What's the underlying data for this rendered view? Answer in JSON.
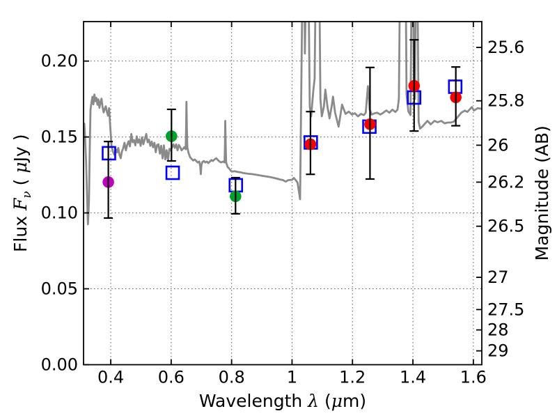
{
  "figure": {
    "background": "#ffffff"
  },
  "chart_data": {
    "type": "line",
    "title": "",
    "xlabel_text": "Wavelength λ (μm)",
    "ylabel_left_text": "Flux Fν ( μJy )",
    "ylabel_right_text": "Magnitude (AB)",
    "xlabel_parts": [
      {
        "t": "Wavelength  ",
        "style": "plain"
      },
      {
        "t": "λ",
        "style": "math"
      },
      {
        "t": " (",
        "style": "plain"
      },
      {
        "t": "μ",
        "style": "math"
      },
      {
        "t": "m)",
        "style": "plain"
      }
    ],
    "ylabel_left_parts": [
      {
        "t": "Flux  ",
        "style": "plain"
      },
      {
        "t": "F",
        "style": "math"
      },
      {
        "t": "ν",
        "style": "mathsub"
      },
      {
        "t": "  ( ",
        "style": "plain"
      },
      {
        "t": "μ",
        "style": "math"
      },
      {
        "t": "Jy )",
        "style": "plain"
      }
    ],
    "ylabel_right_parts": [
      {
        "t": "Magnitude (AB)",
        "style": "plain"
      }
    ],
    "xlim": [
      0.31,
      1.628
    ],
    "ylim_flux": [
      0.0,
      0.226
    ],
    "grid": {
      "on": true,
      "style": "dotted",
      "color": "#555555"
    },
    "x_ticks": [
      {
        "v": 0.4,
        "label": "0.4"
      },
      {
        "v": 0.6,
        "label": "0.6"
      },
      {
        "v": 0.8,
        "label": "0.8"
      },
      {
        "v": 1.0,
        "label": "1"
      },
      {
        "v": 1.2,
        "label": "1.2"
      },
      {
        "v": 1.4,
        "label": "1.4"
      },
      {
        "v": 1.6,
        "label": "1.6"
      }
    ],
    "y_ticks_left": [
      {
        "v": 0.0,
        "label": "0.00"
      },
      {
        "v": 0.05,
        "label": "0.05"
      },
      {
        "v": 0.1,
        "label": "0.10"
      },
      {
        "v": 0.15,
        "label": "0.15"
      },
      {
        "v": 0.2,
        "label": "0.20"
      }
    ],
    "y_ticks_right": [
      {
        "mag": 25.6,
        "label": "25.6"
      },
      {
        "mag": 25.8,
        "label": "25.8"
      },
      {
        "mag": 26.0,
        "label": "26"
      },
      {
        "mag": 26.2,
        "label": "26.2"
      },
      {
        "mag": 26.5,
        "label": "26.5"
      },
      {
        "mag": 27.0,
        "label": "27"
      },
      {
        "mag": 27.5,
        "label": "27.5"
      },
      {
        "mag": 28.0,
        "label": "28"
      },
      {
        "mag": 29.0,
        "label": "29"
      }
    ],
    "colors": {
      "spectrum": "#8a8a8a",
      "model_squares": "#0000ff",
      "error_bars": "#000000",
      "magenta_point": "#bf00bf",
      "green_point": "#00a32a",
      "red_point": "#f80000"
    },
    "spectrum": {
      "name": "grey observed spectrum",
      "points": [
        [
          0.3105,
          0.152
        ],
        [
          0.3125,
          0.1588
        ],
        [
          0.315,
          0.1495
        ],
        [
          0.3185,
          0.133
        ],
        [
          0.322,
          0.108
        ],
        [
          0.3245,
          0.0925
        ],
        [
          0.328,
          0.108
        ],
        [
          0.3305,
          0.142
        ],
        [
          0.333,
          0.168
        ],
        [
          0.336,
          0.1725
        ],
        [
          0.3395,
          0.1765
        ],
        [
          0.3425,
          0.1715
        ],
        [
          0.346,
          0.178
        ],
        [
          0.3495,
          0.1735
        ],
        [
          0.3525,
          0.1758
        ],
        [
          0.356,
          0.1712
        ],
        [
          0.359,
          0.1748
        ],
        [
          0.3625,
          0.1692
        ],
        [
          0.366,
          0.1728
        ],
        [
          0.3695,
          0.1752
        ],
        [
          0.373,
          0.1697
        ],
        [
          0.3765,
          0.1662
        ],
        [
          0.38,
          0.1685
        ],
        [
          0.3835,
          0.1702
        ],
        [
          0.3875,
          0.1665
        ],
        [
          0.391,
          0.164
        ],
        [
          0.3945,
          0.169
        ],
        [
          0.398,
          0.158
        ],
        [
          0.4025,
          0.1445
        ],
        [
          0.407,
          0.1405
        ],
        [
          0.412,
          0.1382
        ],
        [
          0.4165,
          0.142
        ],
        [
          0.4205,
          0.1398
        ],
        [
          0.425,
          0.1428
        ],
        [
          0.429,
          0.1382
        ],
        [
          0.433,
          0.136
        ],
        [
          0.437,
          0.1405
        ],
        [
          0.441,
          0.1425
        ],
        [
          0.4455,
          0.1462
        ],
        [
          0.45,
          0.1412
        ],
        [
          0.4545,
          0.1448
        ],
        [
          0.459,
          0.1472
        ],
        [
          0.4635,
          0.1438
        ],
        [
          0.468,
          0.152
        ],
        [
          0.4725,
          0.1465
        ],
        [
          0.477,
          0.148
        ],
        [
          0.4815,
          0.1445
        ],
        [
          0.486,
          0.1504
        ],
        [
          0.49,
          0.1462
        ],
        [
          0.4945,
          0.1485
        ],
        [
          0.499,
          0.1442
        ],
        [
          0.5035,
          0.1498
        ],
        [
          0.508,
          0.1452
        ],
        [
          0.513,
          0.1488
        ],
        [
          0.5175,
          0.152
        ],
        [
          0.522,
          0.1465
        ],
        [
          0.5265,
          0.1482
        ],
        [
          0.531,
          0.1442
        ],
        [
          0.5355,
          0.147
        ],
        [
          0.54,
          0.1432
        ],
        [
          0.5445,
          0.1462
        ],
        [
          0.549,
          0.1399
        ],
        [
          0.5535,
          0.1448
        ],
        [
          0.558,
          0.1452
        ],
        [
          0.5625,
          0.139
        ],
        [
          0.567,
          0.1442
        ],
        [
          0.5715,
          0.1359
        ],
        [
          0.576,
          0.1445
        ],
        [
          0.5805,
          0.1353
        ],
        [
          0.585,
          0.1413
        ],
        [
          0.5895,
          0.1344
        ],
        [
          0.594,
          0.1422
        ],
        [
          0.5985,
          0.1412
        ],
        [
          0.603,
          0.1432
        ],
        [
          0.6075,
          0.1452
        ],
        [
          0.612,
          0.1428
        ],
        [
          0.6165,
          0.1452
        ],
        [
          0.621,
          0.1412
        ],
        [
          0.6255,
          0.1448
        ],
        [
          0.63,
          0.1432
        ],
        [
          0.6345,
          0.1412
        ],
        [
          0.639,
          0.1422
        ],
        [
          0.6435,
          0.1432
        ],
        [
          0.648,
          0.142
        ],
        [
          0.6495,
          0.156
        ],
        [
          0.6505,
          0.1732
        ],
        [
          0.652,
          0.156
        ],
        [
          0.6535,
          0.143
        ],
        [
          0.658,
          0.1392
        ],
        [
          0.663,
          0.1365
        ],
        [
          0.668,
          0.1355
        ],
        [
          0.673,
          0.1345
        ],
        [
          0.678,
          0.1352
        ],
        [
          0.683,
          0.1342
        ],
        [
          0.688,
          0.1332
        ],
        [
          0.693,
          0.1338
        ],
        [
          0.696,
          0.131
        ],
        [
          0.698,
          0.1255
        ],
        [
          0.7,
          0.1315
        ],
        [
          0.703,
          0.1335
        ],
        [
          0.708,
          0.1342
        ],
        [
          0.713,
          0.1332
        ],
        [
          0.718,
          0.1338
        ],
        [
          0.723,
          0.1328
        ],
        [
          0.728,
          0.1338
        ],
        [
          0.733,
          0.1348
        ],
        [
          0.738,
          0.1342
        ],
        [
          0.7435,
          0.1352
        ],
        [
          0.749,
          0.136
        ],
        [
          0.7545,
          0.1348
        ],
        [
          0.76,
          0.1338
        ],
        [
          0.7655,
          0.1332
        ],
        [
          0.771,
          0.1338
        ],
        [
          0.7765,
          0.1332
        ],
        [
          0.778,
          0.144
        ],
        [
          0.779,
          0.1606
        ],
        [
          0.7805,
          0.144
        ],
        [
          0.782,
          0.1332
        ],
        [
          0.787,
          0.1302
        ],
        [
          0.792,
          0.1292
        ],
        [
          0.797,
          0.1278
        ],
        [
          0.802,
          0.1272
        ],
        [
          0.81,
          0.1275
        ],
        [
          0.82,
          0.127
        ],
        [
          0.83,
          0.1267
        ],
        [
          0.84,
          0.1262
        ],
        [
          0.855,
          0.1258
        ],
        [
          0.87,
          0.1255
        ],
        [
          0.885,
          0.125
        ],
        [
          0.9,
          0.1245
        ],
        [
          0.915,
          0.124
        ],
        [
          0.93,
          0.1235
        ],
        [
          0.945,
          0.1228
        ],
        [
          0.96,
          0.122
        ],
        [
          0.97,
          0.1216
        ],
        [
          0.979,
          0.1206
        ],
        [
          0.988,
          0.1216
        ],
        [
          1.0,
          0.1218
        ],
        [
          1.006,
          0.123
        ],
        [
          1.012,
          0.1216
        ],
        [
          1.018,
          0.12
        ],
        [
          1.023,
          0.114
        ],
        [
          1.0265,
          0.109
        ],
        [
          1.0349,
          0.26
        ],
        [
          1.0403,
          0.26
        ],
        [
          1.0426,
          0.205
        ],
        [
          1.0472,
          0.26
        ],
        [
          1.0541,
          0.26
        ],
        [
          1.0587,
          0.17
        ],
        [
          1.0633,
          0.1635
        ],
        [
          1.0702,
          0.18
        ],
        [
          1.0748,
          0.1885
        ],
        [
          1.0787,
          0.26
        ],
        [
          1.0899,
          0.26
        ],
        [
          1.094,
          0.175
        ],
        [
          1.0986,
          0.1636
        ],
        [
          1.1055,
          0.17
        ],
        [
          1.1102,
          0.1812
        ],
        [
          1.1171,
          0.17
        ],
        [
          1.124,
          0.1622
        ],
        [
          1.1309,
          0.17
        ],
        [
          1.1355,
          0.1766
        ],
        [
          1.1424,
          0.166
        ],
        [
          1.154,
          0.1568
        ],
        [
          1.1655,
          0.1713
        ],
        [
          1.177,
          0.1652
        ],
        [
          1.188,
          0.1667
        ],
        [
          1.198,
          0.1648
        ],
        [
          1.208,
          0.1656
        ],
        [
          1.218,
          0.1636
        ],
        [
          1.228,
          0.1652
        ],
        [
          1.238,
          0.1644
        ],
        [
          1.244,
          0.166
        ],
        [
          1.251,
          0.1835
        ],
        [
          1.257,
          0.168
        ],
        [
          1.264,
          0.1648
        ],
        [
          1.273,
          0.1656
        ],
        [
          1.282,
          0.166
        ],
        [
          1.292,
          0.1648
        ],
        [
          1.302,
          0.166
        ],
        [
          1.312,
          0.1675
        ],
        [
          1.322,
          0.166
        ],
        [
          1.332,
          0.168
        ],
        [
          1.342,
          0.1665
        ],
        [
          1.349,
          0.168
        ],
        [
          1.3536,
          0.175
        ],
        [
          1.3575,
          0.26
        ],
        [
          1.3759,
          0.26
        ],
        [
          1.379,
          0.178
        ],
        [
          1.385,
          0.167
        ],
        [
          1.392,
          0.1644
        ],
        [
          1.396,
          0.26
        ],
        [
          1.4006,
          0.26
        ],
        [
          1.403,
          0.185
        ],
        [
          1.4067,
          0.175
        ],
        [
          1.4098,
          0.26
        ],
        [
          1.4144,
          0.26
        ],
        [
          1.419,
          0.16
        ],
        [
          1.4236,
          0.1555
        ],
        [
          1.431,
          0.1568
        ],
        [
          1.448,
          0.1606
        ],
        [
          1.459,
          0.1583
        ],
        [
          1.471,
          0.1606
        ],
        [
          1.482,
          0.1597
        ],
        [
          1.494,
          0.1606
        ],
        [
          1.505,
          0.159
        ],
        [
          1.515,
          0.1595
        ],
        [
          1.525,
          0.1595
        ],
        [
          1.535,
          0.16
        ],
        [
          1.547,
          0.1628
        ],
        [
          1.56,
          0.166
        ],
        [
          1.572,
          0.1674
        ],
        [
          1.58,
          0.1665
        ],
        [
          1.595,
          0.1697
        ],
        [
          1.602,
          0.1674
        ],
        [
          1.615,
          0.169
        ],
        [
          1.6276,
          0.1685
        ]
      ]
    },
    "photometry_observed": [
      {
        "x": 0.392,
        "flux": 0.1203,
        "err_lo": 0.0966,
        "err_hi": 0.147,
        "color_key": "magenta_point"
      },
      {
        "x": 0.601,
        "flux": 0.1505,
        "err_lo": 0.1342,
        "err_hi": 0.1682,
        "color_key": "green_point"
      },
      {
        "x": 0.813,
        "flux": 0.1109,
        "err_lo": 0.0994,
        "err_hi": 0.1232,
        "color_key": "green_point"
      },
      {
        "x": 1.061,
        "flux": 0.1452,
        "err_lo": 0.1254,
        "err_hi": 0.1667,
        "color_key": "red_point"
      },
      {
        "x": 1.258,
        "flux": 0.1584,
        "err_lo": 0.1223,
        "err_hi": 0.1958,
        "color_key": "red_point"
      },
      {
        "x": 1.404,
        "flux": 0.1837,
        "err_lo": 0.1539,
        "err_hi": 0.214,
        "color_key": "red_point"
      },
      {
        "x": 1.542,
        "flux": 0.1761,
        "err_lo": 0.1574,
        "err_hi": 0.1961,
        "color_key": "red_point"
      }
    ],
    "photometry_model": [
      {
        "x": 0.394,
        "flux": 0.1393
      },
      {
        "x": 0.605,
        "flux": 0.1264
      },
      {
        "x": 0.814,
        "flux": 0.1182
      },
      {
        "x": 1.062,
        "flux": 0.1464
      },
      {
        "x": 1.256,
        "flux": 0.1568
      },
      {
        "x": 1.404,
        "flux": 0.176
      },
      {
        "x": 1.54,
        "flux": 0.1831
      }
    ]
  }
}
